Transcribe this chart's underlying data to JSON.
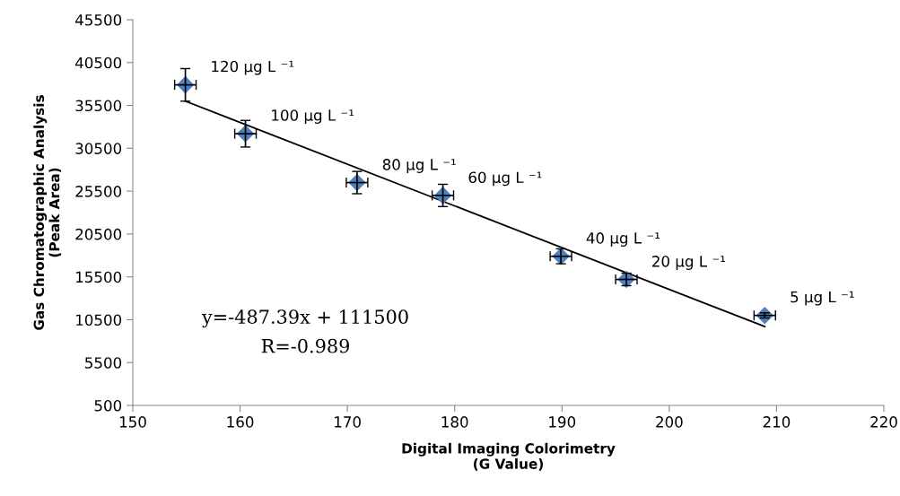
{
  "chart_data": {
    "type": "scatter",
    "xlabel": "Digital Imaging Colorimetry\n(G Value)",
    "ylabel": "Gas Chromatographic Analysis\n(Peak Area)",
    "xlim": [
      150,
      220
    ],
    "xticks": [
      150,
      160,
      170,
      180,
      190,
      200,
      210,
      220
    ],
    "ylim": [
      500,
      45500
    ],
    "yticks": [
      500,
      5500,
      10500,
      15500,
      20500,
      25500,
      30500,
      35500,
      40500,
      45500
    ],
    "grid": false,
    "legend": false,
    "marker": "diamond",
    "series": [
      {
        "color": "#4f81bd",
        "x": [
          154.9,
          160.5,
          170.9,
          178.9,
          189.9,
          196.0,
          208.9
        ],
        "values": [
          37900,
          32200,
          26500,
          25000,
          17900,
          15200,
          11000
        ],
        "errors": [
          1900,
          1550,
          1300,
          1300,
          870,
          730,
          300
        ],
        "xerrors": [
          1.0,
          1.0,
          1.0,
          1.0,
          1.0,
          1.0,
          1.0
        ]
      },
      {
        "type": "line",
        "color": "#000000",
        "marker": "none",
        "line_style": "solid",
        "x": [
          154.9,
          208.9
        ],
        "values": [
          36000,
          9700
        ]
      }
    ],
    "annotations": [
      {
        "text": "120 μg L ⁻¹",
        "x": 154.9,
        "y": 37900
      },
      {
        "text": "100 μg L ⁻¹",
        "x": 160.5,
        "y": 32200
      },
      {
        "text": "80 μg L ⁻¹",
        "x": 170.9,
        "y": 26450
      },
      {
        "text": "60 μg L ⁻¹",
        "x": 178.9,
        "y": 24950
      },
      {
        "text": "40 μg L ⁻¹",
        "x": 189.9,
        "y": 17870
      },
      {
        "text": "20 μg L ⁻¹",
        "x": 196.0,
        "y": 15150
      },
      {
        "text": "5 μg L ⁻¹",
        "x": 208.9,
        "y": 11000
      },
      "y=-487.39x + 111500",
      "R=-0.989"
    ]
  }
}
